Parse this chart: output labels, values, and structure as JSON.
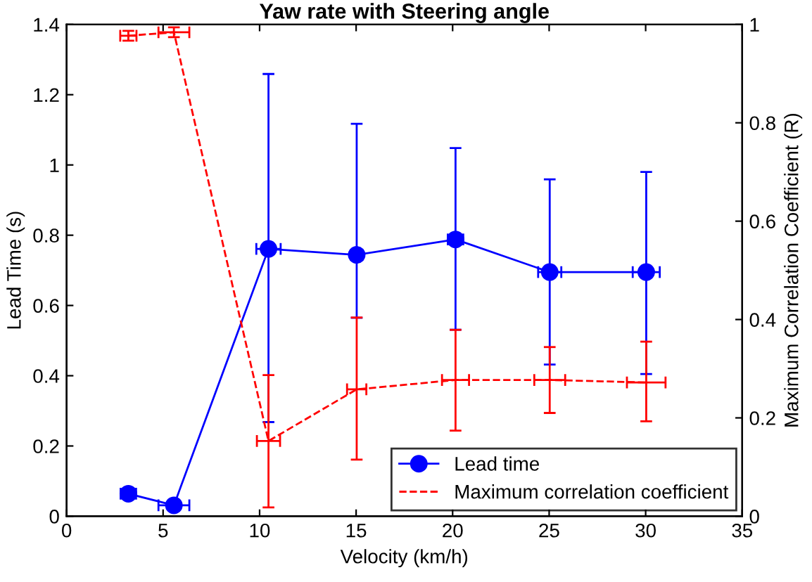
{
  "chart_data": {
    "type": "line",
    "title": "Yaw rate with Steering angle",
    "xlabel": "Velocity (km/h)",
    "ylabel": "Lead Time (s)",
    "y2label": "Maximum Correlation Coefficient (R)",
    "xlim": [
      0,
      35
    ],
    "xticks": [
      0,
      5,
      10,
      15,
      20,
      25,
      30,
      35
    ],
    "ylim": [
      0,
      1.4
    ],
    "yticks": [
      0,
      0.2,
      0.4,
      0.6,
      0.8,
      1,
      1.2,
      1.4
    ],
    "y2lim": [
      0,
      1
    ],
    "y2ticks": [
      0,
      0.2,
      0.4,
      0.6,
      0.8,
      1
    ],
    "grid": false,
    "legend": "bottom right",
    "series": [
      {
        "name": "Lead time",
        "color": "#0000ff",
        "marker": "circle",
        "line_style": "solid",
        "x": [
          3.2,
          5.56,
          10.46,
          15.03,
          20.15,
          25.03,
          30.03
        ],
        "values": [
          0.064,
          0.031,
          0.761,
          0.744,
          0.788,
          0.695,
          0.695
        ],
        "errors": [
          [
            0.054,
            0.074
          ],
          null,
          [
            0.268,
            1.259
          ],
          [
            0.565,
            1.117
          ],
          [
            0.531,
            1.048
          ],
          [
            0.432,
            0.959
          ],
          [
            0.405,
            0.98
          ]
        ],
        "xerrors": [
          0.4,
          0.8,
          0.63,
          0.3,
          0.4,
          0.6,
          0.7
        ]
      },
      {
        "name": "Maximum correlation coefficient",
        "color": "#ff0000",
        "marker": "none",
        "line_style": "dashed",
        "axis": "y2",
        "x": [
          3.2,
          5.56,
          10.46,
          15.03,
          20.15,
          25.03,
          30.03
        ],
        "values": [
          0.977,
          0.984,
          0.153,
          0.258,
          0.277,
          0.277,
          0.272
        ],
        "errors": [
          0.01,
          0.01,
          [
            0.018,
            0.287
          ],
          [
            0.115,
            0.404
          ],
          [
            0.174,
            0.379
          ],
          [
            0.21,
            0.344
          ],
          [
            0.193,
            0.355
          ]
        ],
        "xerrors": [
          0.42,
          0.8,
          0.6,
          0.5,
          0.7,
          0.8,
          1.0
        ]
      }
    ]
  }
}
